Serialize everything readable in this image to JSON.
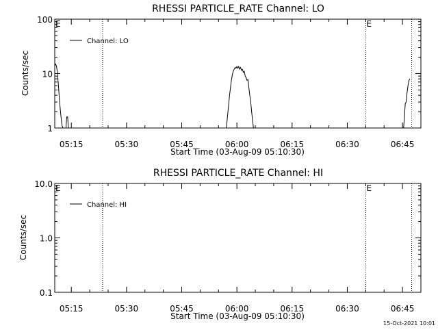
{
  "plot_stamp": "15-Oct-2021 10:01",
  "chart_data": [
    {
      "type": "line",
      "title": "RHESSI PARTICLE_RATE Channel: LO",
      "xlabel": "Start Time (03-Aug-09 05:10:30)",
      "ylabel": "Counts/sec",
      "y_scale": "log",
      "xlim": [
        "05:10:30",
        "06:50:00"
      ],
      "ylim": [
        1,
        100
      ],
      "x_tick_labels": [
        "05:15",
        "05:30",
        "05:45",
        "06:00",
        "06:15",
        "06:30",
        "06:45"
      ],
      "y_tick_labels": [
        "1",
        "10",
        "100"
      ],
      "legend": {
        "position": "top-left",
        "entries": [
          "Channel: LO"
        ]
      },
      "event_lines": [
        {
          "time": "05:23:30",
          "label": ""
        },
        {
          "time": "06:35:00",
          "label": "E"
        },
        {
          "time": "06:47:30",
          "label": ""
        }
      ],
      "edge_label": "E",
      "series": [
        {
          "name": "Channel: LO",
          "points": [
            [
              "05:10:30",
              14
            ],
            [
              "05:10:45",
              15
            ],
            [
              "05:11:00",
              13.5
            ],
            [
              "05:11:15",
              10
            ],
            [
              "05:11:30",
              6
            ],
            [
              "05:11:45",
              3.5
            ],
            [
              "05:12:00",
              2.2
            ],
            [
              "05:12:15",
              1.5
            ],
            [
              "05:12:30",
              1.1
            ],
            [
              "05:12:45",
              1.0
            ],
            [
              "05:13:00",
              0.9
            ],
            [
              null,
              null
            ],
            [
              "05:13:30",
              0.9
            ],
            [
              "05:13:45",
              1.6
            ],
            [
              "05:14:00",
              1.6
            ],
            [
              "05:14:15",
              0.9
            ],
            [
              null,
              null
            ],
            [
              "05:57:00",
              0.9
            ],
            [
              "05:57:15",
              1.2
            ],
            [
              "05:57:30",
              1.8
            ],
            [
              "05:57:45",
              2.6
            ],
            [
              "05:58:00",
              4.0
            ],
            [
              "05:58:15",
              5.5
            ],
            [
              "05:58:30",
              7.5
            ],
            [
              "05:58:45",
              9.5
            ],
            [
              "05:59:00",
              11
            ],
            [
              "05:59:15",
              12
            ],
            [
              "05:59:30",
              13
            ],
            [
              "05:59:45",
              12.5
            ],
            [
              "06:00:00",
              13.5
            ],
            [
              "06:00:15",
              12.5
            ],
            [
              "06:00:30",
              13.5
            ],
            [
              "06:00:45",
              12
            ],
            [
              "06:01:00",
              13
            ],
            [
              "06:01:15",
              11.5
            ],
            [
              "06:01:30",
              12
            ],
            [
              "06:01:45",
              10.5
            ],
            [
              "06:02:00",
              11
            ],
            [
              "06:02:15",
              9
            ],
            [
              "06:02:30",
              8.5
            ],
            [
              "06:02:45",
              7.5
            ],
            [
              "06:03:00",
              7.8
            ],
            [
              "06:03:15",
              5.5
            ],
            [
              "06:03:30",
              4.0
            ],
            [
              "06:03:45",
              3.0
            ],
            [
              "06:04:00",
              2.0
            ],
            [
              "06:04:15",
              1.4
            ],
            [
              "06:04:30",
              1.0
            ],
            [
              "06:04:45",
              0.9
            ],
            [
              null,
              null
            ],
            [
              "06:45:15",
              0.9
            ],
            [
              "06:45:30",
              1.5
            ],
            [
              "06:45:45",
              2.8
            ],
            [
              "06:46:00",
              3.0
            ],
            [
              "06:46:15",
              4.5
            ],
            [
              "06:46:30",
              6.0
            ],
            [
              "06:46:45",
              7.5
            ],
            [
              "06:47:00",
              8.0
            ]
          ]
        }
      ]
    },
    {
      "type": "line",
      "title": "RHESSI PARTICLE_RATE Channel: HI",
      "xlabel": "Start Time (03-Aug-09 05:10:30)",
      "ylabel": "Counts/sec",
      "y_scale": "log",
      "xlim": [
        "05:10:30",
        "06:50:00"
      ],
      "ylim": [
        0.1,
        10.0
      ],
      "x_tick_labels": [
        "05:15",
        "05:30",
        "05:45",
        "06:00",
        "06:15",
        "06:30",
        "06:45"
      ],
      "y_tick_labels": [
        "0.1",
        "1.0",
        "10.0"
      ],
      "legend": {
        "position": "top-left",
        "entries": [
          "Channel: HI"
        ]
      },
      "event_lines": [
        {
          "time": "05:23:30",
          "label": ""
        },
        {
          "time": "06:35:00",
          "label": "E"
        },
        {
          "time": "06:47:30",
          "label": ""
        }
      ],
      "edge_label": "E",
      "series": [
        {
          "name": "Channel: HI",
          "points": []
        }
      ]
    }
  ]
}
